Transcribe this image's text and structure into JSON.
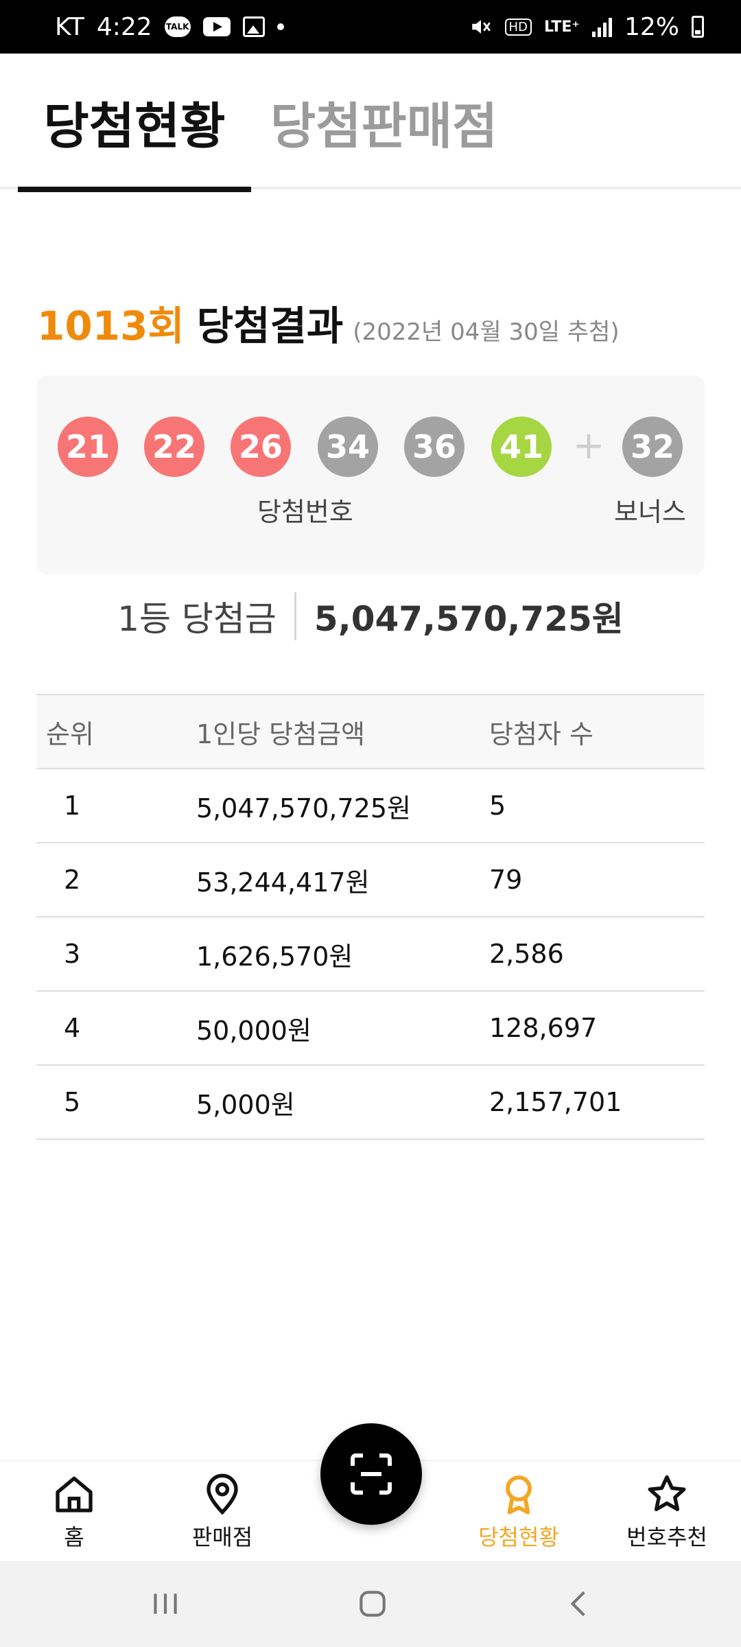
{
  "status_bar": {
    "carrier": "KT",
    "time": "4:22",
    "talk_badge": "TALK",
    "hd_label": "HD",
    "lte_label": "LTE⁺",
    "battery": "12%"
  },
  "tabs": [
    {
      "label": "당첨현황",
      "active": true
    },
    {
      "label": "당첨판매점",
      "active": false
    }
  ],
  "result": {
    "round": "1013회",
    "title": "당첨결과",
    "date": "(2022년 04월 30일 추첨)"
  },
  "numbers": {
    "winning": [
      {
        "value": "21",
        "color": "#f87575"
      },
      {
        "value": "22",
        "color": "#f87575"
      },
      {
        "value": "26",
        "color": "#f87575"
      },
      {
        "value": "34",
        "color": "#a3a3a3"
      },
      {
        "value": "36",
        "color": "#a3a3a3"
      },
      {
        "value": "41",
        "color": "#a6d642"
      }
    ],
    "plus": "+",
    "bonus": {
      "value": "32",
      "color": "#a3a3a3"
    },
    "winning_label": "당첨번호",
    "bonus_label": "보너스"
  },
  "first_prize": {
    "label": "1등 당첨금",
    "amount": "5,047,570,725원"
  },
  "table": {
    "headers": [
      "순위",
      "1인당 당첨금액",
      "당첨자 수"
    ],
    "rows": [
      [
        "1",
        "5,047,570,725원",
        "5"
      ],
      [
        "2",
        "53,244,417원",
        "79"
      ],
      [
        "3",
        "1,626,570원",
        "2,586"
      ],
      [
        "4",
        "50,000원",
        "128,697"
      ],
      [
        "5",
        "5,000원",
        "2,157,701"
      ]
    ]
  },
  "bottom_nav": {
    "home": "홈",
    "store": "판매점",
    "winning": "당첨현황",
    "recommend": "번호추천"
  },
  "colors": {
    "accent": "#f08a0c",
    "nav_active": "#f4a623",
    "red_ball": "#f87575",
    "gray_ball": "#a3a3a3",
    "green_ball": "#a6d642"
  },
  "icons": {
    "home": "home-icon",
    "store": "location-pin-icon",
    "scan": "qr-scan-icon",
    "winning": "award-ribbon-icon",
    "recommend": "star-icon"
  }
}
